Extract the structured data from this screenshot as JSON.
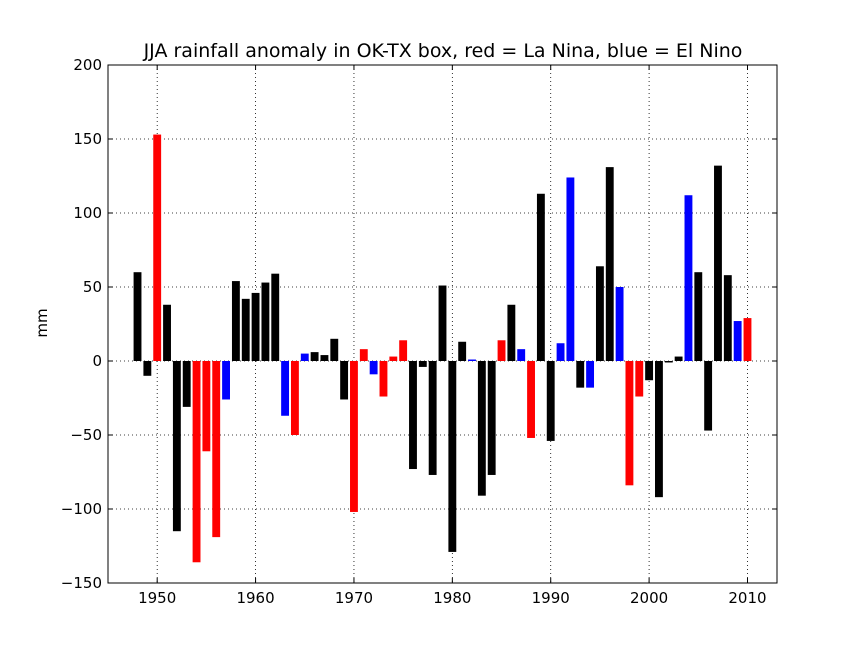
{
  "chart_data": {
    "type": "bar",
    "title": "JJA rainfall anomaly in OK-TX box, red = La Nina, blue = El Nino",
    "xlabel": "",
    "ylabel": "mm",
    "xlim": [
      1945,
      2013
    ],
    "ylim": [
      -150,
      200
    ],
    "xticks": [
      1950,
      1960,
      1970,
      1980,
      1990,
      2000,
      2010
    ],
    "yticks": [
      -150,
      -100,
      -50,
      0,
      50,
      100,
      150,
      200
    ],
    "grid": true,
    "colors": {
      "neutral": "#000000",
      "la_nina": "#ff0000",
      "el_nino": "#0000ff"
    },
    "bars": [
      {
        "year": 1948,
        "value": 60,
        "phase": "neutral"
      },
      {
        "year": 1949,
        "value": -10,
        "phase": "neutral"
      },
      {
        "year": 1950,
        "value": 153,
        "phase": "la_nina"
      },
      {
        "year": 1951,
        "value": 38,
        "phase": "neutral"
      },
      {
        "year": 1952,
        "value": -115,
        "phase": "neutral"
      },
      {
        "year": 1953,
        "value": -31,
        "phase": "neutral"
      },
      {
        "year": 1954,
        "value": -136,
        "phase": "la_nina"
      },
      {
        "year": 1955,
        "value": -61,
        "phase": "la_nina"
      },
      {
        "year": 1956,
        "value": -119,
        "phase": "la_nina"
      },
      {
        "year": 1957,
        "value": -26,
        "phase": "el_nino"
      },
      {
        "year": 1958,
        "value": 54,
        "phase": "neutral"
      },
      {
        "year": 1959,
        "value": 42,
        "phase": "neutral"
      },
      {
        "year": 1960,
        "value": 46,
        "phase": "neutral"
      },
      {
        "year": 1961,
        "value": 53,
        "phase": "neutral"
      },
      {
        "year": 1962,
        "value": 59,
        "phase": "neutral"
      },
      {
        "year": 1963,
        "value": -37,
        "phase": "el_nino"
      },
      {
        "year": 1964,
        "value": -50,
        "phase": "la_nina"
      },
      {
        "year": 1965,
        "value": 5,
        "phase": "el_nino"
      },
      {
        "year": 1966,
        "value": 6,
        "phase": "neutral"
      },
      {
        "year": 1967,
        "value": 4,
        "phase": "neutral"
      },
      {
        "year": 1968,
        "value": 15,
        "phase": "neutral"
      },
      {
        "year": 1969,
        "value": -26,
        "phase": "neutral"
      },
      {
        "year": 1970,
        "value": -102,
        "phase": "la_nina"
      },
      {
        "year": 1971,
        "value": 8,
        "phase": "la_nina"
      },
      {
        "year": 1972,
        "value": -9,
        "phase": "el_nino"
      },
      {
        "year": 1973,
        "value": -24,
        "phase": "la_nina"
      },
      {
        "year": 1974,
        "value": 3,
        "phase": "la_nina"
      },
      {
        "year": 1975,
        "value": 14,
        "phase": "la_nina"
      },
      {
        "year": 1976,
        "value": -73,
        "phase": "neutral"
      },
      {
        "year": 1977,
        "value": -4,
        "phase": "neutral"
      },
      {
        "year": 1978,
        "value": -77,
        "phase": "neutral"
      },
      {
        "year": 1979,
        "value": 51,
        "phase": "neutral"
      },
      {
        "year": 1980,
        "value": -129,
        "phase": "neutral"
      },
      {
        "year": 1981,
        "value": 13,
        "phase": "neutral"
      },
      {
        "year": 1982,
        "value": 1,
        "phase": "el_nino"
      },
      {
        "year": 1983,
        "value": -91,
        "phase": "neutral"
      },
      {
        "year": 1984,
        "value": -77,
        "phase": "neutral"
      },
      {
        "year": 1985,
        "value": 14,
        "phase": "la_nina"
      },
      {
        "year": 1986,
        "value": 38,
        "phase": "neutral"
      },
      {
        "year": 1987,
        "value": 8,
        "phase": "el_nino"
      },
      {
        "year": 1988,
        "value": -52,
        "phase": "la_nina"
      },
      {
        "year": 1989,
        "value": 113,
        "phase": "neutral"
      },
      {
        "year": 1990,
        "value": -54,
        "phase": "neutral"
      },
      {
        "year": 1991,
        "value": 12,
        "phase": "el_nino"
      },
      {
        "year": 1992,
        "value": 124,
        "phase": "el_nino"
      },
      {
        "year": 1993,
        "value": -18,
        "phase": "neutral"
      },
      {
        "year": 1994,
        "value": -18,
        "phase": "el_nino"
      },
      {
        "year": 1995,
        "value": 64,
        "phase": "neutral"
      },
      {
        "year": 1996,
        "value": 131,
        "phase": "neutral"
      },
      {
        "year": 1997,
        "value": 50,
        "phase": "el_nino"
      },
      {
        "year": 1998,
        "value": -84,
        "phase": "la_nina"
      },
      {
        "year": 1999,
        "value": -24,
        "phase": "la_nina"
      },
      {
        "year": 2000,
        "value": -13,
        "phase": "neutral"
      },
      {
        "year": 2001,
        "value": -92,
        "phase": "neutral"
      },
      {
        "year": 2002,
        "value": -1,
        "phase": "neutral"
      },
      {
        "year": 2003,
        "value": 3,
        "phase": "neutral"
      },
      {
        "year": 2004,
        "value": 112,
        "phase": "el_nino"
      },
      {
        "year": 2005,
        "value": 60,
        "phase": "neutral"
      },
      {
        "year": 2006,
        "value": -47,
        "phase": "neutral"
      },
      {
        "year": 2007,
        "value": 132,
        "phase": "neutral"
      },
      {
        "year": 2008,
        "value": 58,
        "phase": "neutral"
      },
      {
        "year": 2009,
        "value": 27,
        "phase": "el_nino"
      },
      {
        "year": 2010,
        "value": 29,
        "phase": "la_nina"
      }
    ]
  }
}
